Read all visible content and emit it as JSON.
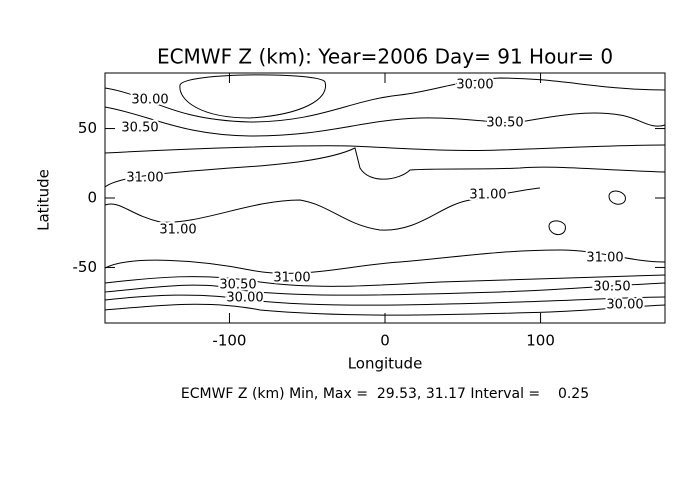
{
  "chart_data": {
    "type": "contour",
    "title": "ECMWF Z (km): Year=2006 Day= 91 Hour= 0",
    "x_label": "Longitude",
    "y_label": "Latitude",
    "xlim": [
      -180,
      180
    ],
    "xticks": [
      -100,
      0,
      100
    ],
    "ylim": [
      -90,
      90
    ],
    "yticks": [
      -50,
      0,
      50
    ],
    "levels": [
      {
        "value": 30,
        "label": "30.00"
      },
      {
        "value": 30.5,
        "label": "30.50"
      },
      {
        "value": 31,
        "label": "31.00"
      }
    ],
    "color": "#000000",
    "footer": "ECMWF Z (km) Min, Max =  29.53, 31.17 Interval =    0.25"
  }
}
